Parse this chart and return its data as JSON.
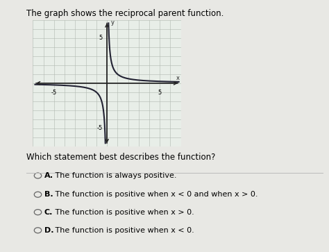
{
  "title": "The graph shows the reciprocal parent function.",
  "question": "Which statement best describes the function?",
  "options": [
    {
      "label": "A.",
      "text": " The function is always positive."
    },
    {
      "label": "B.",
      "text": " The function is positive when x < 0 and when x > 0."
    },
    {
      "label": "C.",
      "text": " The function is positive when x > 0."
    },
    {
      "label": "D.",
      "text": " The function is positive when x < 0."
    }
  ],
  "xlim": [
    -7,
    7
  ],
  "ylim": [
    -7,
    7
  ],
  "graph_bg": "#e8eee8",
  "curve_color": "#222233",
  "axis_color": "#222222",
  "grid_color": "#b0b8b0",
  "title_fontsize": 8.5,
  "question_fontsize": 8.5,
  "option_fontsize": 8.0,
  "fig_bg": "#e8e8e4"
}
